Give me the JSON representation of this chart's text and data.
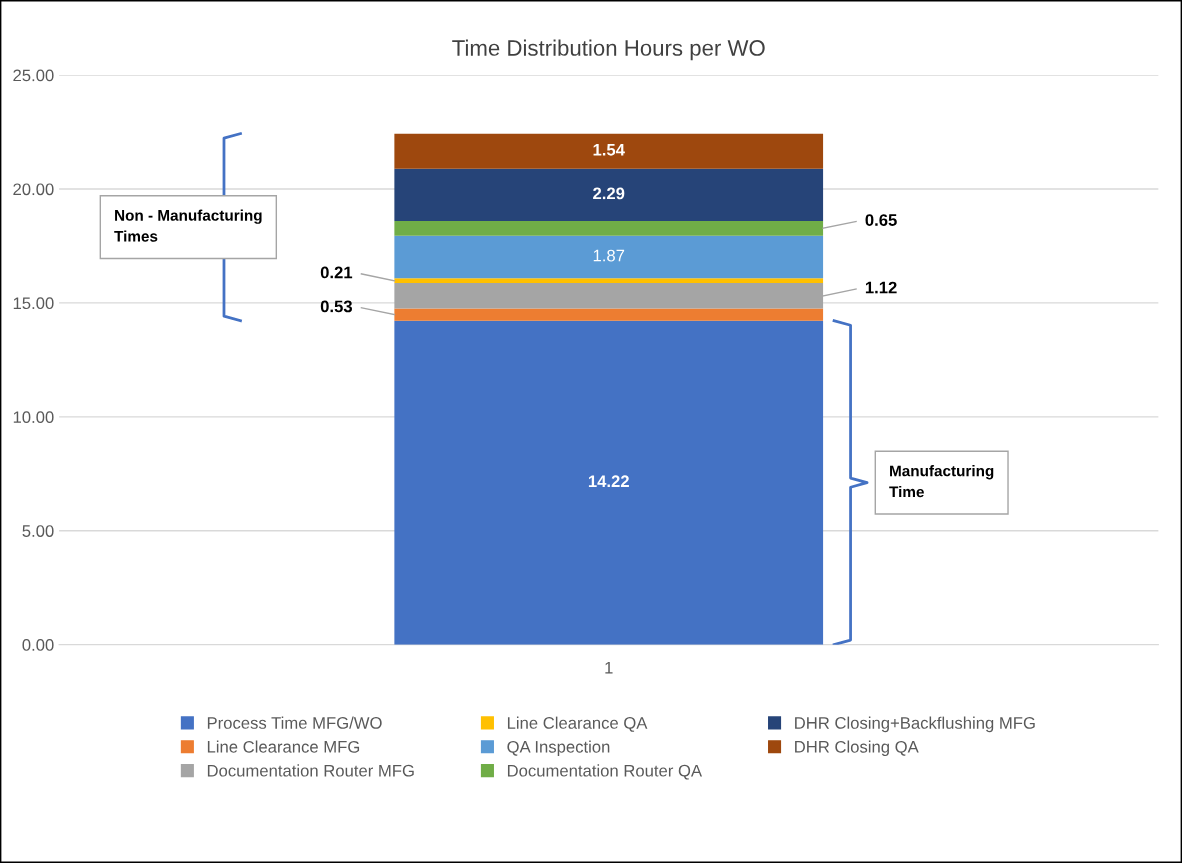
{
  "chart_data": {
    "type": "bar",
    "title": "Time Distribution Hours per WO",
    "categories": [
      "1"
    ],
    "stacked": true,
    "series": [
      {
        "name": "Process Time MFG/WO",
        "color": "#4472c4",
        "values": [
          14.22
        ]
      },
      {
        "name": "Line Clearance MFG",
        "color": "#ed7d31",
        "values": [
          0.53
        ]
      },
      {
        "name": "Documentation Router MFG",
        "color": "#a5a5a5",
        "values": [
          1.12
        ]
      },
      {
        "name": "Line Clearance QA",
        "color": "#ffc000",
        "values": [
          0.21
        ]
      },
      {
        "name": "QA Inspection",
        "color": "#5b9bd5",
        "values": [
          1.87
        ]
      },
      {
        "name": "Documentation Router QA",
        "color": "#70ad47",
        "values": [
          0.65
        ]
      },
      {
        "name": "DHR Closing+Backflushing MFG",
        "color": "#264478",
        "values": [
          2.29
        ]
      },
      {
        "name": "DHR Closing QA",
        "color": "#9e480e",
        "values": [
          1.54
        ]
      }
    ],
    "ylim": [
      0,
      25
    ],
    "yticks": [
      {
        "value": 0,
        "label": "0.00"
      },
      {
        "value": 5,
        "label": "5.00"
      },
      {
        "value": 10,
        "label": "10.00"
      },
      {
        "value": 15,
        "label": "15.00"
      },
      {
        "value": 20,
        "label": "20.00"
      },
      {
        "value": 25,
        "label": "25.00"
      }
    ],
    "grid": "y",
    "legend": "bottom",
    "data_labels": true,
    "annotations": [
      "Non - Manufacturing Times",
      "Manufacturing Time"
    ]
  }
}
